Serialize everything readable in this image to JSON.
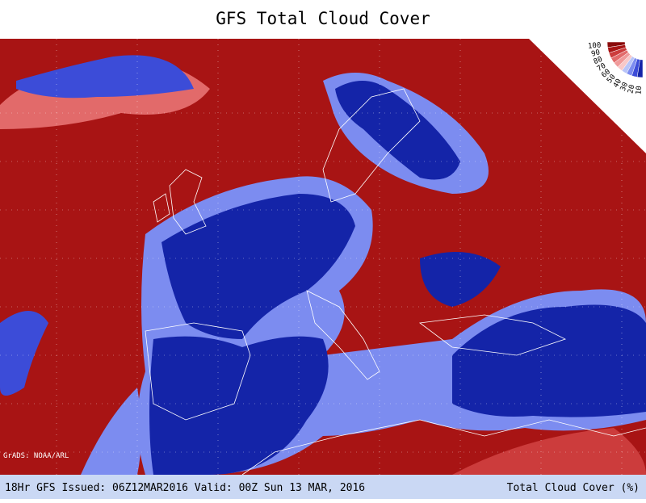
{
  "header": {
    "title": "GFS Total Cloud Cover"
  },
  "map": {
    "credit": "GrADS: NOAA/ARL"
  },
  "legend": {
    "levels": [
      {
        "label": 100,
        "color": "#8a0a0a"
      },
      {
        "label": 90,
        "color": "#a81414"
      },
      {
        "label": 80,
        "color": "#cc3c3c"
      },
      {
        "label": 70,
        "color": "#e26a6a"
      },
      {
        "label": 60,
        "color": "#f09a9a"
      },
      {
        "label": 50,
        "color": "#f8c8c8"
      },
      {
        "label": 40,
        "color": "#b8c4f8"
      },
      {
        "label": 30,
        "color": "#7c8cf0"
      },
      {
        "label": 20,
        "color": "#3c4cd8"
      },
      {
        "label": 10,
        "color": "#1424a8"
      }
    ]
  },
  "footer": {
    "left": "18Hr GFS Issued: 06Z12MAR2016 Valid: 00Z Sun 13 MAR, 2016",
    "right": "Total Cloud Cover (%)"
  }
}
